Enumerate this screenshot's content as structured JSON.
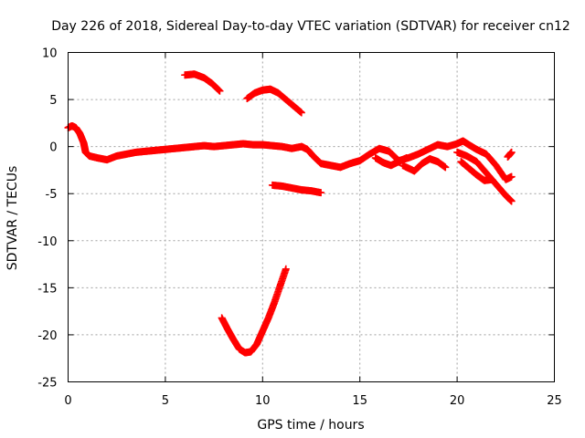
{
  "chart_data": {
    "type": "scatter",
    "title": "Day 226 of 2018, Sidereal Day-to-day VTEC variation (SDTVAR) for receiver cn12",
    "xlabel": "GPS time / hours",
    "ylabel": "SDTVAR / TECUs",
    "xlim": [
      0,
      25
    ],
    "ylim": [
      -25,
      10
    ],
    "xticks": [
      0,
      5,
      10,
      15,
      20,
      25
    ],
    "yticks": [
      -25,
      -20,
      -15,
      -10,
      -5,
      0,
      5,
      10
    ],
    "xtick_labels": [
      "0",
      "5",
      "10",
      "15",
      "20",
      "25"
    ],
    "ytick_labels": [
      "-25",
      "-20",
      "-15",
      "-10",
      "-5",
      "0",
      "5",
      "10"
    ],
    "grid": true,
    "marker": "plus",
    "color": "#ff0000",
    "series": [
      {
        "name": "main-trace",
        "points": [
          [
            0.0,
            2.0
          ],
          [
            0.2,
            2.2
          ],
          [
            0.4,
            2.0
          ],
          [
            0.6,
            1.4
          ],
          [
            0.8,
            0.4
          ],
          [
            0.9,
            -0.6
          ],
          [
            1.1,
            -1.0
          ],
          [
            1.5,
            -1.2
          ],
          [
            2.0,
            -1.4
          ],
          [
            2.5,
            -1.0
          ],
          [
            3.0,
            -0.8
          ],
          [
            3.5,
            -0.6
          ],
          [
            4.0,
            -0.5
          ],
          [
            4.5,
            -0.4
          ],
          [
            5.0,
            -0.3
          ],
          [
            5.5,
            -0.2
          ],
          [
            6.0,
            -0.1
          ],
          [
            6.5,
            0.0
          ],
          [
            7.0,
            0.1
          ],
          [
            7.5,
            0.0
          ],
          [
            8.0,
            0.1
          ],
          [
            8.5,
            0.2
          ],
          [
            9.0,
            0.3
          ],
          [
            9.5,
            0.2
          ],
          [
            10.0,
            0.2
          ],
          [
            10.5,
            0.1
          ],
          [
            11.0,
            0.0
          ],
          [
            11.5,
            -0.2
          ],
          [
            12.0,
            0.0
          ],
          [
            12.3,
            -0.3
          ],
          [
            12.6,
            -1.0
          ],
          [
            13.0,
            -1.8
          ],
          [
            13.5,
            -2.0
          ],
          [
            14.0,
            -2.2
          ],
          [
            14.5,
            -1.8
          ],
          [
            15.0,
            -1.5
          ],
          [
            15.5,
            -0.8
          ],
          [
            16.0,
            -0.2
          ],
          [
            16.5,
            -0.5
          ],
          [
            17.0,
            -1.5
          ],
          [
            17.5,
            -1.2
          ],
          [
            18.0,
            -0.8
          ],
          [
            18.5,
            -0.3
          ],
          [
            19.0,
            0.2
          ],
          [
            19.5,
            0.0
          ],
          [
            20.0,
            0.3
          ],
          [
            20.3,
            0.6
          ],
          [
            20.6,
            0.2
          ],
          [
            21.0,
            -0.3
          ],
          [
            21.5,
            -0.8
          ],
          [
            22.0,
            -2.0
          ],
          [
            22.5,
            -3.5
          ],
          [
            22.8,
            -3.2
          ]
        ]
      },
      {
        "name": "branch-16h-17h",
        "points": [
          [
            15.8,
            -1.2
          ],
          [
            16.2,
            -1.7
          ],
          [
            16.6,
            -2.0
          ],
          [
            17.0,
            -1.6
          ],
          [
            17.4,
            -1.2
          ]
        ]
      },
      {
        "name": "branch-17h-19h",
        "points": [
          [
            17.2,
            -2.0
          ],
          [
            17.8,
            -2.6
          ],
          [
            18.2,
            -1.8
          ],
          [
            18.6,
            -1.3
          ],
          [
            19.0,
            -1.6
          ],
          [
            19.4,
            -2.2
          ]
        ]
      },
      {
        "name": "branch-20h-23h",
        "points": [
          [
            20.0,
            -0.6
          ],
          [
            20.5,
            -1.0
          ],
          [
            21.0,
            -1.6
          ],
          [
            21.5,
            -2.8
          ],
          [
            22.0,
            -4.0
          ],
          [
            22.5,
            -5.2
          ],
          [
            22.8,
            -5.8
          ]
        ]
      },
      {
        "name": "branch-21h-22h",
        "points": [
          [
            20.2,
            -1.6
          ],
          [
            20.6,
            -2.3
          ],
          [
            21.0,
            -3.0
          ],
          [
            21.4,
            -3.6
          ],
          [
            21.8,
            -3.5
          ]
        ]
      },
      {
        "name": "short-segment-22.8h",
        "points": [
          [
            22.6,
            -1.1
          ],
          [
            22.8,
            -0.6
          ]
        ]
      },
      {
        "name": "segment-6-8h",
        "points": [
          [
            6.0,
            7.6
          ],
          [
            6.5,
            7.7
          ],
          [
            7.0,
            7.3
          ],
          [
            7.4,
            6.7
          ],
          [
            7.8,
            5.9
          ]
        ]
      },
      {
        "name": "segment-9-12h",
        "points": [
          [
            9.2,
            5.1
          ],
          [
            9.6,
            5.7
          ],
          [
            10.0,
            6.0
          ],
          [
            10.4,
            6.1
          ],
          [
            10.8,
            5.7
          ],
          [
            11.2,
            5.0
          ],
          [
            11.6,
            4.3
          ],
          [
            12.0,
            3.6
          ]
        ]
      },
      {
        "name": "segment-10-13h",
        "points": [
          [
            10.5,
            -4.1
          ],
          [
            11.0,
            -4.2
          ],
          [
            11.5,
            -4.4
          ],
          [
            12.0,
            -4.6
          ],
          [
            12.5,
            -4.7
          ],
          [
            13.0,
            -4.9
          ]
        ]
      },
      {
        "name": "dip-8-11h",
        "points": [
          [
            7.9,
            -18.2
          ],
          [
            8.2,
            -19.4
          ],
          [
            8.5,
            -20.5
          ],
          [
            8.8,
            -21.5
          ],
          [
            9.1,
            -21.9
          ],
          [
            9.4,
            -21.8
          ],
          [
            9.7,
            -21.0
          ],
          [
            10.0,
            -19.6
          ],
          [
            10.3,
            -18.2
          ],
          [
            10.6,
            -16.6
          ],
          [
            10.9,
            -14.8
          ],
          [
            11.2,
            -13.0
          ]
        ]
      }
    ]
  }
}
